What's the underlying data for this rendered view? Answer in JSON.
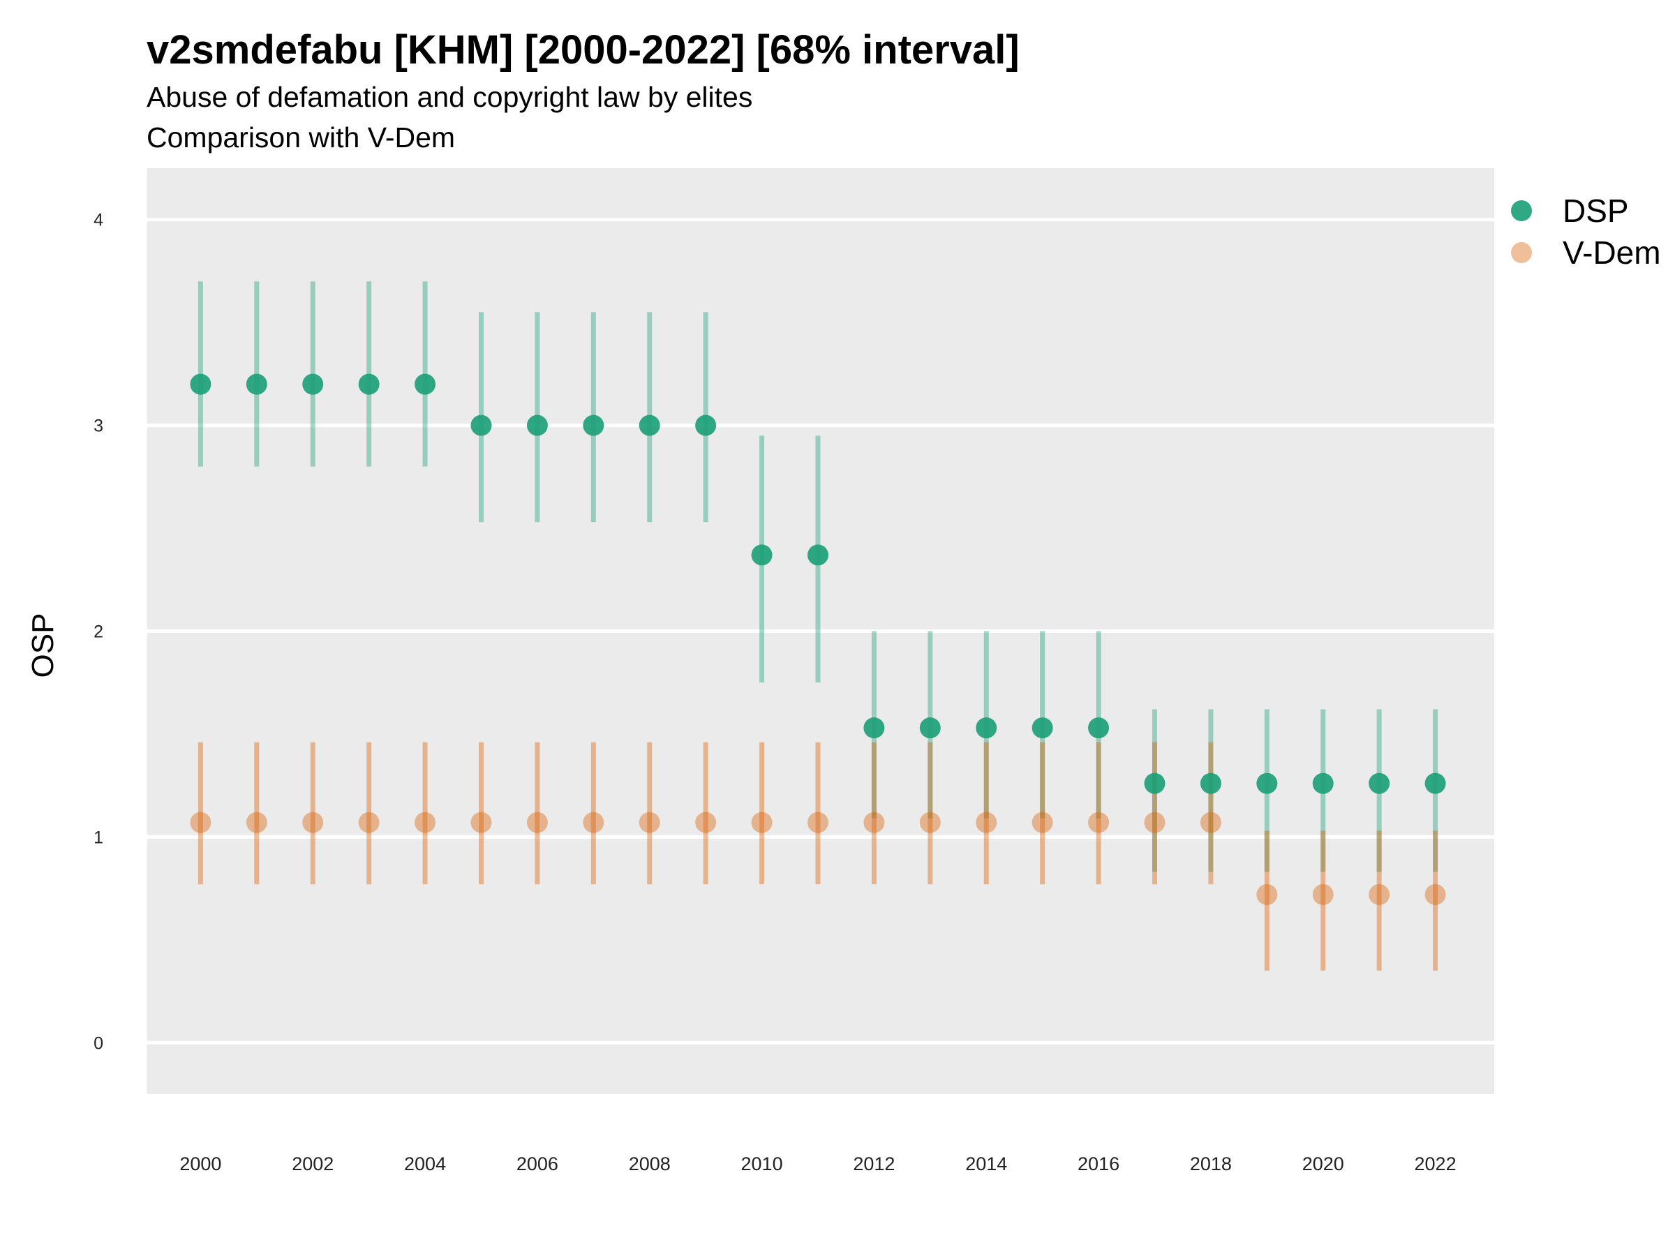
{
  "chart_data": {
    "type": "scatter",
    "title": "v2smdefabu [KHM] [2000-2022] [68% interval]",
    "subtitle_lines": [
      "Abuse of defamation and copyright law by elites",
      "Comparison with V-Dem"
    ],
    "xlabel": "",
    "ylabel": "OSP",
    "x_ticks": [
      2000,
      2002,
      2004,
      2006,
      2008,
      2010,
      2012,
      2014,
      2016,
      2018,
      2020,
      2022
    ],
    "y_ticks": [
      0,
      1,
      2,
      3,
      4
    ],
    "xlim": [
      1999.05,
      2023.05
    ],
    "ylim": [
      -0.25,
      4.25
    ],
    "grid": "horizontal major lines",
    "legend_position": "right",
    "series": [
      {
        "name": "DSP",
        "color": "#1b9e77",
        "x": [
          2000,
          2001,
          2002,
          2003,
          2004,
          2005,
          2006,
          2007,
          2008,
          2009,
          2010,
          2011,
          2012,
          2013,
          2014,
          2015,
          2016,
          2017,
          2018,
          2019,
          2020,
          2021,
          2022
        ],
        "y": [
          3.2,
          3.2,
          3.2,
          3.2,
          3.2,
          3.0,
          3.0,
          3.0,
          3.0,
          3.0,
          2.37,
          2.37,
          1.53,
          1.53,
          1.53,
          1.53,
          1.53,
          1.26,
          1.26,
          1.26,
          1.26,
          1.26,
          1.26
        ],
        "lower": [
          2.8,
          2.8,
          2.8,
          2.8,
          2.8,
          2.53,
          2.53,
          2.53,
          2.53,
          2.53,
          1.75,
          1.75,
          1.09,
          1.09,
          1.09,
          1.09,
          1.09,
          0.83,
          0.83,
          0.83,
          0.83,
          0.83,
          0.83
        ],
        "upper": [
          3.7,
          3.7,
          3.7,
          3.7,
          3.7,
          3.55,
          3.55,
          3.55,
          3.55,
          3.55,
          2.95,
          2.95,
          2.0,
          2.0,
          2.0,
          2.0,
          2.0,
          1.62,
          1.62,
          1.62,
          1.62,
          1.62,
          1.62
        ]
      },
      {
        "name": "V-Dem",
        "color": "#d95f02",
        "x": [
          2000,
          2001,
          2002,
          2003,
          2004,
          2005,
          2006,
          2007,
          2008,
          2009,
          2010,
          2011,
          2012,
          2013,
          2014,
          2015,
          2016,
          2017,
          2018,
          2019,
          2020,
          2021,
          2022
        ],
        "y": [
          1.07,
          1.07,
          1.07,
          1.07,
          1.07,
          1.07,
          1.07,
          1.07,
          1.07,
          1.07,
          1.07,
          1.07,
          1.07,
          1.07,
          1.07,
          1.07,
          1.07,
          1.07,
          1.07,
          0.72,
          0.72,
          0.72,
          0.72
        ],
        "lower": [
          0.77,
          0.77,
          0.77,
          0.77,
          0.77,
          0.77,
          0.77,
          0.77,
          0.77,
          0.77,
          0.77,
          0.77,
          0.77,
          0.77,
          0.77,
          0.77,
          0.77,
          0.77,
          0.77,
          0.35,
          0.35,
          0.35,
          0.35
        ],
        "upper": [
          1.46,
          1.46,
          1.46,
          1.46,
          1.46,
          1.46,
          1.46,
          1.46,
          1.46,
          1.46,
          1.46,
          1.46,
          1.46,
          1.46,
          1.46,
          1.46,
          1.46,
          1.46,
          1.46,
          1.03,
          1.03,
          1.03,
          1.03
        ]
      }
    ]
  },
  "colors": {
    "panel_background": "#ebebeb",
    "gridline": "#ffffff",
    "dsp": "#1b9e77",
    "vdem": "#d95f02"
  }
}
